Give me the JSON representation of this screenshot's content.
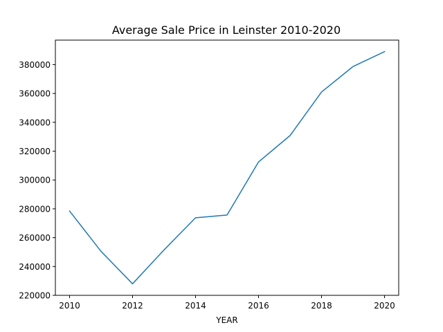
{
  "chart_data": {
    "type": "line",
    "title": "Average Sale Price in Leinster 2010-2020",
    "xlabel": "YEAR",
    "ylabel": "",
    "x": [
      2010,
      2011,
      2012,
      2013,
      2014,
      2015,
      2016,
      2017,
      2018,
      2019,
      2020
    ],
    "series": [
      {
        "values": [
          278500,
          250500,
          228000,
          251500,
          273800,
          275700,
          312500,
          330800,
          361000,
          378700,
          389000
        ],
        "color": "#1f77b4"
      }
    ],
    "xlim": [
      2009.55,
      2020.45
    ],
    "ylim": [
      220000,
      397000
    ],
    "xticks": [
      2010,
      2012,
      2014,
      2016,
      2018,
      2020
    ],
    "yticks": [
      220000,
      240000,
      260000,
      280000,
      300000,
      320000,
      340000,
      360000,
      380000
    ],
    "grid": false,
    "legend": "none"
  }
}
